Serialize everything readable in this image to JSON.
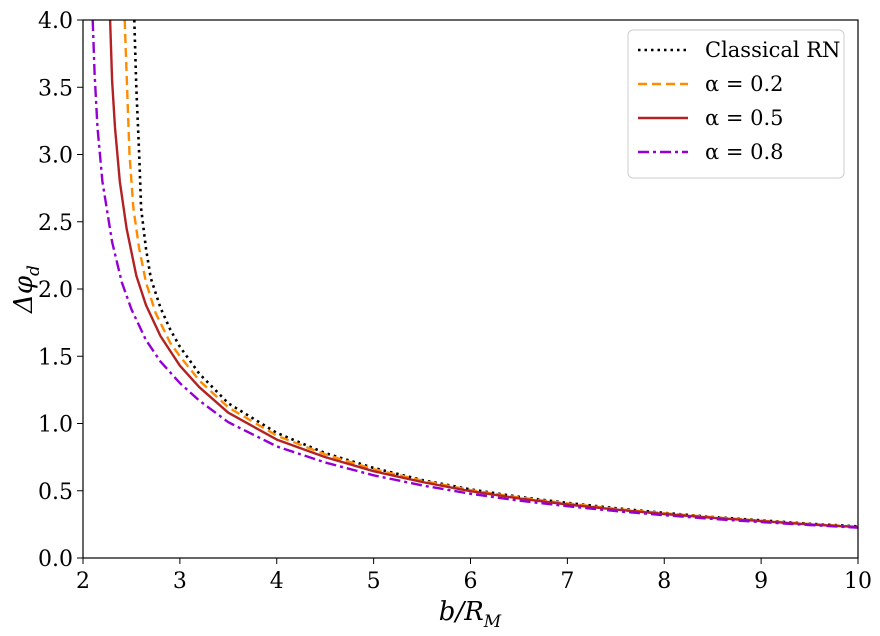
{
  "chart_data": {
    "type": "line",
    "xlabel": "b/R_M",
    "ylabel": "Δφ_d",
    "xlim": [
      2,
      10
    ],
    "ylim": [
      0,
      4
    ],
    "x_ticks": [
      "2",
      "3",
      "4",
      "5",
      "6",
      "7",
      "8",
      "9",
      "10"
    ],
    "y_ticks": [
      "0.0",
      "0.5",
      "1.0",
      "1.5",
      "2.0",
      "2.5",
      "3.0",
      "3.5",
      "4.0"
    ],
    "grid": false,
    "legend_position": "top-right",
    "series": [
      {
        "name": "Classical RN",
        "color": "#000000",
        "style": "dotted",
        "points": [
          [
            2.53,
            4.0
          ],
          [
            2.55,
            3.5
          ],
          [
            2.58,
            3.0
          ],
          [
            2.6,
            2.6
          ],
          [
            2.65,
            2.3
          ],
          [
            2.7,
            2.08
          ],
          [
            2.8,
            1.86
          ],
          [
            2.9,
            1.7
          ],
          [
            3.0,
            1.57
          ],
          [
            3.2,
            1.37
          ],
          [
            3.5,
            1.15
          ],
          [
            4.0,
            0.93
          ],
          [
            4.5,
            0.78
          ],
          [
            5.0,
            0.67
          ],
          [
            5.5,
            0.58
          ],
          [
            6.0,
            0.51
          ],
          [
            6.5,
            0.455
          ],
          [
            7.0,
            0.41
          ],
          [
            7.5,
            0.37
          ],
          [
            8.0,
            0.335
          ],
          [
            8.5,
            0.305
          ],
          [
            9.0,
            0.28
          ],
          [
            9.5,
            0.255
          ],
          [
            10.0,
            0.235
          ]
        ]
      },
      {
        "name": "α = 0.2",
        "color": "#ff8c00",
        "style": "dashed",
        "points": [
          [
            2.43,
            4.0
          ],
          [
            2.45,
            3.6
          ],
          [
            2.48,
            3.0
          ],
          [
            2.52,
            2.6
          ],
          [
            2.58,
            2.3
          ],
          [
            2.65,
            2.05
          ],
          [
            2.75,
            1.82
          ],
          [
            2.9,
            1.6
          ],
          [
            3.0,
            1.5
          ],
          [
            3.2,
            1.32
          ],
          [
            3.5,
            1.12
          ],
          [
            4.0,
            0.91
          ],
          [
            4.5,
            0.77
          ],
          [
            5.0,
            0.66
          ],
          [
            5.5,
            0.575
          ],
          [
            6.0,
            0.505
          ],
          [
            6.5,
            0.45
          ],
          [
            7.0,
            0.405
          ],
          [
            7.5,
            0.365
          ],
          [
            8.0,
            0.332
          ],
          [
            8.5,
            0.303
          ],
          [
            9.0,
            0.277
          ],
          [
            9.5,
            0.253
          ],
          [
            10.0,
            0.232
          ]
        ]
      },
      {
        "name": "α = 0.5",
        "color": "#b22222",
        "style": "solid",
        "points": [
          [
            2.28,
            4.0
          ],
          [
            2.3,
            3.55
          ],
          [
            2.33,
            3.2
          ],
          [
            2.38,
            2.8
          ],
          [
            2.45,
            2.45
          ],
          [
            2.55,
            2.1
          ],
          [
            2.65,
            1.88
          ],
          [
            2.8,
            1.65
          ],
          [
            3.0,
            1.43
          ],
          [
            3.2,
            1.27
          ],
          [
            3.5,
            1.08
          ],
          [
            4.0,
            0.88
          ],
          [
            4.5,
            0.75
          ],
          [
            5.0,
            0.645
          ],
          [
            5.5,
            0.565
          ],
          [
            6.0,
            0.497
          ],
          [
            6.5,
            0.443
          ],
          [
            7.0,
            0.398
          ],
          [
            7.5,
            0.36
          ],
          [
            8.0,
            0.327
          ],
          [
            8.5,
            0.299
          ],
          [
            9.0,
            0.274
          ],
          [
            9.5,
            0.25
          ],
          [
            10.0,
            0.23
          ]
        ]
      },
      {
        "name": "α = 0.8",
        "color": "#9400d3",
        "style": "dashdot",
        "points": [
          [
            2.1,
            4.0
          ],
          [
            2.12,
            3.6
          ],
          [
            2.15,
            3.2
          ],
          [
            2.2,
            2.8
          ],
          [
            2.3,
            2.35
          ],
          [
            2.4,
            2.05
          ],
          [
            2.5,
            1.85
          ],
          [
            2.65,
            1.62
          ],
          [
            2.8,
            1.46
          ],
          [
            3.0,
            1.3
          ],
          [
            3.2,
            1.17
          ],
          [
            3.5,
            1.01
          ],
          [
            4.0,
            0.83
          ],
          [
            4.5,
            0.71
          ],
          [
            5.0,
            0.615
          ],
          [
            5.5,
            0.54
          ],
          [
            6.0,
            0.477
          ],
          [
            6.5,
            0.427
          ],
          [
            7.0,
            0.385
          ],
          [
            7.5,
            0.349
          ],
          [
            8.0,
            0.318
          ],
          [
            8.5,
            0.291
          ],
          [
            9.0,
            0.267
          ],
          [
            9.5,
            0.245
          ],
          [
            10.0,
            0.225
          ]
        ]
      }
    ]
  }
}
